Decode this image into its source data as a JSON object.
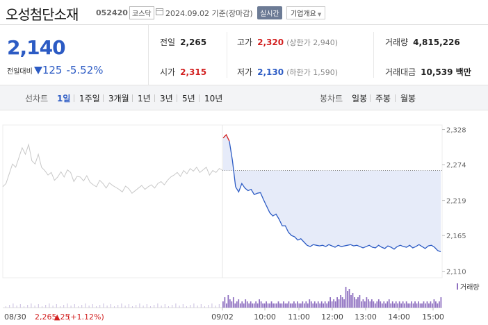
{
  "header": {
    "name": "오성첨단소재",
    "code": "052420",
    "market": "코스닥",
    "date": "2024.09.02",
    "basis": "기준(장마감)",
    "live_badge": "실시간",
    "company_info": "기업개요"
  },
  "summary": {
    "price": "2,140",
    "change_label": "전일대비",
    "change_amount": "125",
    "change_percent": "-5.52%",
    "prev_close": {
      "label": "전일",
      "value": "2,265"
    },
    "high": {
      "label": "고가",
      "value": "2,320",
      "sub": "(상한가 2,940)"
    },
    "open": {
      "label": "시가",
      "value": "2,315"
    },
    "low": {
      "label": "저가",
      "value": "2,130",
      "sub": "(하한가 1,590)"
    },
    "volume": {
      "label": "거래량",
      "value": "4,815,226"
    },
    "trade_value": {
      "label": "거래대금",
      "value": "10,539 백만"
    }
  },
  "tabs": {
    "line_label": "선차트",
    "line_items": [
      "1일",
      "1주일",
      "3개월",
      "1년",
      "3년",
      "5년",
      "10년"
    ],
    "active_index": 0,
    "candle_label": "봉차트",
    "candle_items": [
      "일봉",
      "주봉",
      "월봉"
    ]
  },
  "colors": {
    "down": "#2c5bc4",
    "up": "#d21f1f",
    "prev_day_line": "#c8c8c8",
    "area_fill": "#e6ebf9",
    "volume_bar": "#8e6fc0"
  },
  "chart_data": {
    "type": "line",
    "ylim": [
      2100,
      2335
    ],
    "y_ticks": [
      "2,328",
      "2,274",
      "2,219",
      "2,165",
      "2,110"
    ],
    "x_ticks": [
      "08/30",
      "09/02",
      "10:00",
      "11:00",
      "12:00",
      "13:00",
      "14:00",
      "15:00"
    ],
    "prev_close_level": 2265,
    "volume_label": "거래량",
    "footer_prev": {
      "date": "08/30",
      "price": "2,265",
      "change": "▲25",
      "percent": "(+1.12%)"
    },
    "prev_day_series": [
      2240,
      2245,
      2260,
      2275,
      2270,
      2285,
      2300,
      2290,
      2305,
      2280,
      2275,
      2290,
      2270,
      2265,
      2258,
      2262,
      2250,
      2255,
      2263,
      2255,
      2266,
      2262,
      2248,
      2256,
      2255,
      2249,
      2257,
      2247,
      2243,
      2240,
      2250,
      2245,
      2238,
      2246,
      2242,
      2239,
      2236,
      2232,
      2241,
      2237,
      2230,
      2234,
      2238,
      2242,
      2236,
      2240,
      2243,
      2238,
      2245,
      2248,
      2243,
      2250,
      2255,
      2258,
      2262,
      2256,
      2265,
      2260,
      2268,
      2264,
      2270,
      2262,
      2266,
      2270,
      2258,
      2265,
      2262,
      2268,
      2266
    ],
    "today_series": [
      2315,
      2320,
      2310,
      2280,
      2240,
      2232,
      2245,
      2238,
      2234,
      2236,
      2228,
      2230,
      2231,
      2220,
      2210,
      2200,
      2195,
      2198,
      2190,
      2180,
      2180,
      2170,
      2165,
      2163,
      2158,
      2160,
      2155,
      2150,
      2148,
      2151,
      2150,
      2149,
      2150,
      2148,
      2151,
      2149,
      2147,
      2150,
      2148,
      2149,
      2150,
      2151,
      2149,
      2150,
      2148,
      2146,
      2148,
      2150,
      2147,
      2146,
      2150,
      2147,
      2145,
      2149,
      2147,
      2144,
      2148,
      2150,
      2148,
      2147,
      2150,
      2146,
      2148,
      2151,
      2148,
      2145,
      2149,
      2150,
      2147,
      2142,
      2140
    ],
    "volume_series": [
      0.3,
      0.5,
      0.2,
      0.6,
      0.4,
      0.3,
      0.5,
      0.2,
      0.3,
      0.4,
      0.2,
      0.3,
      0.2,
      0.4,
      0.3,
      0.2,
      0.3,
      0.2,
      0.2,
      0.3,
      0.2,
      0.4,
      0.3,
      0.2,
      0.2,
      0.3,
      0.2,
      0.2,
      0.3,
      0.2,
      0.2,
      0.2,
      0.3,
      0.2,
      0.2,
      0.3,
      0.2,
      0.2,
      0.3,
      0.2,
      0.2,
      0.3,
      0.2,
      0.3,
      0.2,
      0.2,
      0.3,
      0.2,
      0.3,
      0.2,
      0.4,
      0.3,
      0.2,
      0.3,
      0.2,
      0.3,
      0.2,
      0.3,
      0.2,
      0.3,
      0.2,
      0.3,
      0.5,
      0.3,
      0.4,
      0.3,
      0.5,
      0.4,
      0.6,
      0.5,
      0.4,
      1.0,
      0.8,
      0.9,
      0.6,
      0.7,
      0.5,
      0.4,
      0.5,
      0.6,
      0.3,
      0.4,
      0.3,
      0.5,
      0.4,
      0.3,
      0.4,
      0.3,
      0.2,
      0.3,
      0.4,
      0.3,
      0.2,
      0.3,
      0.2,
      0.3,
      0.4,
      0.2,
      0.3,
      0.2,
      0.3,
      0.2,
      0.3,
      0.2,
      0.3,
      0.2,
      0.3,
      0.2,
      0.2,
      0.3,
      0.2,
      0.3,
      0.2,
      0.3,
      0.2,
      0.2,
      0.3,
      0.2,
      0.3,
      0.2,
      0.3,
      0.2,
      0.4,
      0.3,
      0.2,
      0.3,
      0.5
    ]
  }
}
